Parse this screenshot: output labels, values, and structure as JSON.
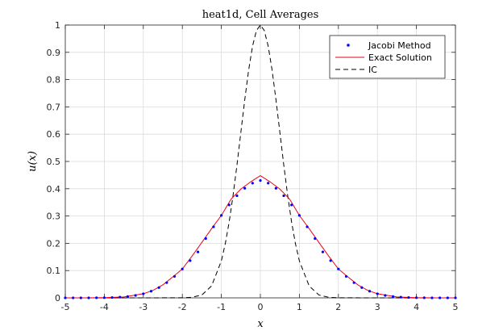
{
  "chart_data": {
    "type": "line",
    "title": "heat1d, Cell Averages",
    "xlabel": "x",
    "ylabel": "u(x)",
    "xlim": [
      -5,
      5
    ],
    "ylim": [
      0,
      1
    ],
    "x_ticks": [
      -5,
      -4,
      -3,
      -2,
      -1,
      0,
      1,
      2,
      3,
      4,
      5
    ],
    "y_ticks": [
      0,
      0.1,
      0.2,
      0.3,
      0.4,
      0.5,
      0.6,
      0.7,
      0.8,
      0.9,
      1
    ],
    "x_tick_labels": [
      "-5",
      "-4",
      "-3",
      "-2",
      "-1",
      "0",
      "1",
      "2",
      "3",
      "4",
      "5"
    ],
    "y_tick_labels": [
      "0",
      "0.1",
      "0.2",
      "0.3",
      "0.4",
      "0.5",
      "0.6",
      "0.7",
      "0.8",
      "0.9",
      "1"
    ],
    "grid": true,
    "legend_position": "top-right",
    "series": [
      {
        "name": "Jacobi Method",
        "style": "dots",
        "color": "#0000ff",
        "x": [
          -5.0,
          -4.8,
          -4.6,
          -4.4,
          -4.2,
          -4.0,
          -3.8,
          -3.6,
          -3.4,
          -3.2,
          -3.0,
          -2.8,
          -2.6,
          -2.4,
          -2.2,
          -2.0,
          -1.8,
          -1.6,
          -1.4,
          -1.2,
          -1.0,
          -0.8,
          -0.6,
          -0.4,
          -0.2,
          0.0,
          0.2,
          0.4,
          0.6,
          0.8,
          1.0,
          1.2,
          1.4,
          1.6,
          1.8,
          2.0,
          2.2,
          2.4,
          2.6,
          2.8,
          3.0,
          3.2,
          3.4,
          3.6,
          3.8,
          4.0,
          4.2,
          4.4,
          4.6,
          4.8,
          5.0
        ],
        "y": [
          0.0,
          0.0,
          0.0,
          0.0001,
          0.0003,
          0.0006,
          0.0013,
          0.0026,
          0.0049,
          0.0088,
          0.015,
          0.0244,
          0.0377,
          0.0557,
          0.0786,
          0.1059,
          0.1364,
          0.1682,
          0.2174,
          0.2605,
          0.3022,
          0.3407,
          0.3744,
          0.4016,
          0.4205,
          0.43,
          0.4205,
          0.4016,
          0.3744,
          0.3407,
          0.3022,
          0.2605,
          0.2174,
          0.1682,
          0.1364,
          0.1059,
          0.0786,
          0.0557,
          0.0377,
          0.0244,
          0.015,
          0.0088,
          0.0049,
          0.0026,
          0.0013,
          0.0006,
          0.0003,
          0.0001,
          0.0,
          0.0,
          0.0
        ]
      },
      {
        "name": "Exact Solution",
        "style": "solid",
        "color": "#e8001c",
        "x": [
          -5.0,
          -4.5,
          -4.0,
          -3.5,
          -3.0,
          -2.75,
          -2.5,
          -2.25,
          -2.0,
          -1.75,
          -1.5,
          -1.25,
          -1.0,
          -0.75,
          -0.5,
          -0.25,
          0.0,
          0.25,
          0.5,
          0.75,
          1.0,
          1.25,
          1.5,
          1.75,
          2.0,
          2.25,
          2.5,
          2.75,
          3.0,
          3.5,
          4.0,
          4.5,
          5.0
        ],
        "y": [
          0.0,
          0.0001,
          0.0006,
          0.0034,
          0.015,
          0.0276,
          0.0475,
          0.0762,
          0.1059,
          0.1534,
          0.2033,
          0.2538,
          0.3022,
          0.3619,
          0.3987,
          0.4252,
          0.448,
          0.4252,
          0.3987,
          0.3619,
          0.3022,
          0.2538,
          0.2033,
          0.1534,
          0.1059,
          0.0762,
          0.0475,
          0.0276,
          0.015,
          0.0034,
          0.0006,
          0.0001,
          0.0
        ]
      },
      {
        "name": "IC",
        "style": "dashed",
        "color": "#000000",
        "x": [
          -5.0,
          -3.0,
          -2.0,
          -1.75,
          -1.5,
          -1.25,
          -1.0,
          -0.9,
          -0.8,
          -0.7,
          -0.6,
          -0.5,
          -0.4,
          -0.3,
          -0.2,
          -0.1,
          0.0,
          0.1,
          0.2,
          0.3,
          0.4,
          0.5,
          0.6,
          0.7,
          0.8,
          0.9,
          1.0,
          1.25,
          1.5,
          1.75,
          2.0,
          3.0,
          5.0
        ],
        "y": [
          0.0,
          0.0,
          0.0004,
          0.0022,
          0.0105,
          0.0439,
          0.1353,
          0.1979,
          0.278,
          0.3753,
          0.4868,
          0.6065,
          0.7261,
          0.8353,
          0.9231,
          0.9802,
          1.0,
          0.9802,
          0.9231,
          0.8353,
          0.7261,
          0.6065,
          0.4868,
          0.3753,
          0.278,
          0.1979,
          0.1353,
          0.0439,
          0.0105,
          0.0022,
          0.0004,
          0.0,
          0.0
        ]
      }
    ]
  }
}
